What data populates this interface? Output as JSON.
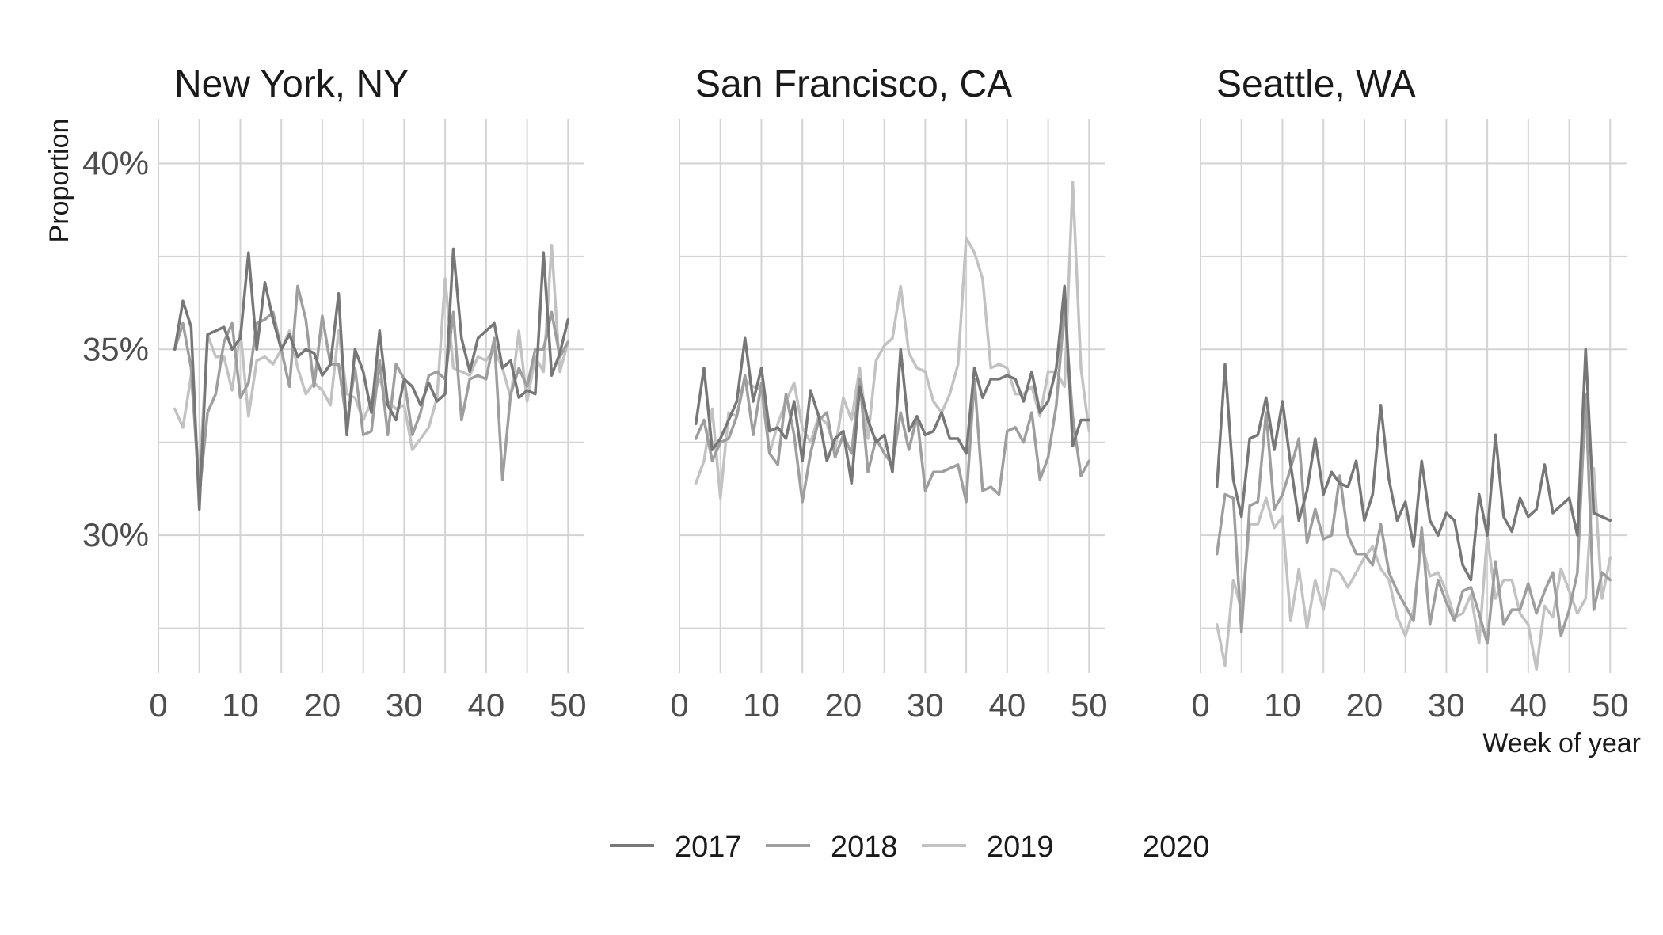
{
  "chart_data": {
    "type": "line",
    "layout": "facets",
    "x_axis_title": "Week of year",
    "y_axis_title": "Proportion",
    "x_ticks": [
      0,
      10,
      20,
      30,
      40,
      50
    ],
    "x_tick_labels": [
      "0",
      "10",
      "20",
      "30",
      "40",
      "50"
    ],
    "y_ticks": [
      0.3,
      0.35,
      0.4
    ],
    "y_tick_labels": [
      "30%",
      "35%",
      "40%"
    ],
    "xlim": [
      0,
      52
    ],
    "ylim": [
      0.263,
      0.412
    ],
    "grid": true,
    "legend_position": "bottom",
    "legend": [
      {
        "name": "2017",
        "color": "#777777"
      },
      {
        "name": "2018",
        "color": "#9e9e9e"
      },
      {
        "name": "2019",
        "color": "#c2c2c2"
      },
      {
        "name": "2020",
        "color": "#ffffff"
      }
    ],
    "panels": [
      {
        "title": "New York, NY",
        "series": [
          {
            "name": "2017",
            "x": [
              2,
              3,
              4,
              5,
              6,
              7,
              8,
              9,
              10,
              11,
              12,
              13,
              14,
              15,
              16,
              17,
              18,
              19,
              20,
              21,
              22,
              23,
              24,
              25,
              26,
              27,
              28,
              29,
              30,
              31,
              32,
              33,
              34,
              35,
              36,
              37,
              38,
              39,
              40,
              41,
              42,
              43,
              44,
              45,
              46,
              47,
              48,
              49,
              50
            ],
            "y": [
              0.35,
              0.363,
              0.356,
              0.307,
              0.354,
              0.355,
              0.356,
              0.35,
              0.353,
              0.376,
              0.35,
              0.368,
              0.358,
              0.35,
              0.354,
              0.348,
              0.35,
              0.349,
              0.343,
              0.346,
              0.365,
              0.327,
              0.35,
              0.344,
              0.333,
              0.355,
              0.335,
              0.331,
              0.342,
              0.34,
              0.335,
              0.341,
              0.336,
              0.338,
              0.377,
              0.353,
              0.344,
              0.353,
              0.355,
              0.357,
              0.345,
              0.347,
              0.337,
              0.339,
              0.338,
              0.376,
              0.343,
              0.349,
              0.358
            ]
          },
          {
            "name": "2018",
            "x": [
              2,
              3,
              4,
              5,
              6,
              7,
              8,
              9,
              10,
              11,
              12,
              13,
              14,
              15,
              16,
              17,
              18,
              19,
              20,
              21,
              22,
              23,
              24,
              25,
              26,
              27,
              28,
              29,
              30,
              31,
              32,
              33,
              34,
              35,
              36,
              37,
              38,
              39,
              40,
              41,
              42,
              43,
              44,
              45,
              46,
              47,
              48,
              49,
              50
            ],
            "y": [
              0.35,
              0.357,
              0.345,
              0.311,
              0.333,
              0.338,
              0.352,
              0.357,
              0.337,
              0.341,
              0.357,
              0.358,
              0.36,
              0.35,
              0.34,
              0.367,
              0.358,
              0.34,
              0.359,
              0.346,
              0.346,
              0.33,
              0.345,
              0.327,
              0.328,
              0.347,
              0.327,
              0.346,
              0.342,
              0.327,
              0.333,
              0.343,
              0.344,
              0.342,
              0.36,
              0.331,
              0.342,
              0.343,
              0.342,
              0.353,
              0.315,
              0.338,
              0.345,
              0.34,
              0.35,
              0.35,
              0.36,
              0.348,
              0.352
            ]
          },
          {
            "name": "2019",
            "x": [
              2,
              3,
              4,
              5,
              6,
              7,
              8,
              9,
              10,
              11,
              12,
              13,
              14,
              15,
              16,
              17,
              18,
              19,
              20,
              21,
              22,
              23,
              24,
              25,
              26,
              27,
              28,
              29,
              30,
              31,
              32,
              33,
              34,
              35,
              36,
              37,
              38,
              39,
              40,
              41,
              42,
              43,
              44,
              45,
              46,
              47,
              48,
              49,
              50
            ],
            "y": [
              0.334,
              0.329,
              0.343,
              0.315,
              0.354,
              0.348,
              0.348,
              0.339,
              0.355,
              0.332,
              0.347,
              0.348,
              0.346,
              0.35,
              0.355,
              0.345,
              0.338,
              0.341,
              0.339,
              0.335,
              0.355,
              0.338,
              0.337,
              0.331,
              0.336,
              0.342,
              0.336,
              0.334,
              0.335,
              0.323,
              0.326,
              0.329,
              0.337,
              0.369,
              0.345,
              0.344,
              0.343,
              0.348,
              0.347,
              0.35,
              0.345,
              0.337,
              0.355,
              0.336,
              0.348,
              0.344,
              0.378,
              0.344,
              0.352
            ]
          }
        ]
      },
      {
        "title": "San Francisco, CA",
        "series": [
          {
            "name": "2017",
            "x": [
              2,
              3,
              4,
              5,
              6,
              7,
              8,
              9,
              10,
              11,
              12,
              13,
              14,
              15,
              16,
              17,
              18,
              19,
              20,
              21,
              22,
              23,
              24,
              25,
              26,
              27,
              28,
              29,
              30,
              31,
              32,
              33,
              34,
              35,
              36,
              37,
              38,
              39,
              40,
              41,
              42,
              43,
              44,
              45,
              46,
              47,
              48,
              49,
              50
            ],
            "y": [
              0.33,
              0.345,
              0.323,
              0.326,
              0.331,
              0.336,
              0.353,
              0.336,
              0.345,
              0.328,
              0.329,
              0.326,
              0.336,
              0.32,
              0.339,
              0.332,
              0.32,
              0.326,
              0.328,
              0.314,
              0.34,
              0.331,
              0.325,
              0.327,
              0.317,
              0.35,
              0.328,
              0.332,
              0.327,
              0.328,
              0.333,
              0.326,
              0.326,
              0.322,
              0.345,
              0.337,
              0.342,
              0.342,
              0.343,
              0.342,
              0.336,
              0.344,
              0.333,
              0.336,
              0.345,
              0.367,
              0.324,
              0.331,
              0.331
            ]
          },
          {
            "name": "2018",
            "x": [
              2,
              3,
              4,
              5,
              6,
              7,
              8,
              9,
              10,
              11,
              12,
              13,
              14,
              15,
              16,
              17,
              18,
              19,
              20,
              21,
              22,
              23,
              24,
              25,
              26,
              27,
              28,
              29,
              30,
              31,
              32,
              33,
              34,
              35,
              36,
              37,
              38,
              39,
              40,
              41,
              42,
              43,
              44,
              45,
              46,
              47,
              48,
              49,
              50
            ],
            "y": [
              0.326,
              0.331,
              0.32,
              0.325,
              0.326,
              0.332,
              0.343,
              0.327,
              0.341,
              0.322,
              0.319,
              0.338,
              0.327,
              0.309,
              0.322,
              0.331,
              0.333,
              0.321,
              0.327,
              0.322,
              0.342,
              0.317,
              0.326,
              0.322,
              0.319,
              0.333,
              0.323,
              0.332,
              0.312,
              0.317,
              0.317,
              0.318,
              0.319,
              0.309,
              0.342,
              0.312,
              0.313,
              0.311,
              0.328,
              0.329,
              0.325,
              0.333,
              0.315,
              0.321,
              0.335,
              0.361,
              0.332,
              0.316,
              0.32
            ]
          },
          {
            "name": "2019",
            "x": [
              2,
              3,
              4,
              5,
              6,
              7,
              8,
              9,
              10,
              11,
              12,
              13,
              14,
              15,
              16,
              17,
              18,
              19,
              20,
              21,
              22,
              23,
              24,
              25,
              26,
              27,
              28,
              29,
              30,
              31,
              32,
              33,
              34,
              35,
              36,
              37,
              38,
              39,
              40,
              41,
              42,
              43,
              44,
              45,
              46,
              47,
              48,
              49,
              50
            ],
            "y": [
              0.314,
              0.32,
              0.334,
              0.31,
              0.333,
              0.332,
              0.342,
              0.34,
              0.339,
              0.322,
              0.33,
              0.336,
              0.341,
              0.329,
              0.325,
              0.332,
              0.33,
              0.323,
              0.337,
              0.331,
              0.345,
              0.326,
              0.347,
              0.351,
              0.353,
              0.367,
              0.349,
              0.345,
              0.344,
              0.336,
              0.333,
              0.338,
              0.346,
              0.38,
              0.376,
              0.369,
              0.345,
              0.346,
              0.345,
              0.338,
              0.338,
              0.34,
              0.332,
              0.344,
              0.344,
              0.34,
              0.395,
              0.345,
              0.328
            ]
          }
        ]
      },
      {
        "title": "Seattle, WA",
        "series": [
          {
            "name": "2017",
            "x": [
              2,
              3,
              4,
              5,
              6,
              7,
              8,
              9,
              10,
              11,
              12,
              13,
              14,
              15,
              16,
              17,
              18,
              19,
              20,
              21,
              22,
              23,
              24,
              25,
              26,
              27,
              28,
              29,
              30,
              31,
              32,
              33,
              34,
              35,
              36,
              37,
              38,
              39,
              40,
              41,
              42,
              43,
              44,
              45,
              46,
              47,
              48,
              49,
              50
            ],
            "y": [
              0.313,
              0.346,
              0.315,
              0.305,
              0.326,
              0.327,
              0.337,
              0.323,
              0.336,
              0.319,
              0.304,
              0.312,
              0.326,
              0.311,
              0.317,
              0.314,
              0.313,
              0.32,
              0.304,
              0.311,
              0.335,
              0.315,
              0.304,
              0.309,
              0.297,
              0.32,
              0.304,
              0.3,
              0.306,
              0.304,
              0.292,
              0.288,
              0.311,
              0.3,
              0.327,
              0.305,
              0.301,
              0.31,
              0.305,
              0.307,
              0.319,
              0.306,
              0.308,
              0.31,
              0.3,
              0.35,
              0.306,
              0.305,
              0.304
            ]
          },
          {
            "name": "2018",
            "x": [
              2,
              3,
              4,
              5,
              6,
              7,
              8,
              9,
              10,
              11,
              12,
              13,
              14,
              15,
              16,
              17,
              18,
              19,
              20,
              21,
              22,
              23,
              24,
              25,
              26,
              27,
              28,
              29,
              30,
              31,
              32,
              33,
              34,
              35,
              36,
              37,
              38,
              39,
              40,
              41,
              42,
              43,
              44,
              45,
              46,
              47,
              48,
              49,
              50
            ],
            "y": [
              0.295,
              0.311,
              0.31,
              0.274,
              0.308,
              0.309,
              0.333,
              0.307,
              0.311,
              0.318,
              0.326,
              0.298,
              0.307,
              0.299,
              0.3,
              0.316,
              0.3,
              0.295,
              0.295,
              0.292,
              0.303,
              0.29,
              0.285,
              0.281,
              0.277,
              0.302,
              0.276,
              0.288,
              0.282,
              0.277,
              0.285,
              0.286,
              0.279,
              0.271,
              0.293,
              0.276,
              0.28,
              0.28,
              0.287,
              0.279,
              0.285,
              0.29,
              0.273,
              0.28,
              0.29,
              0.338,
              0.28,
              0.29,
              0.288
            ]
          },
          {
            "name": "2019",
            "x": [
              2,
              3,
              4,
              5,
              6,
              7,
              8,
              9,
              10,
              11,
              12,
              13,
              14,
              15,
              16,
              17,
              18,
              19,
              20,
              21,
              22,
              23,
              24,
              25,
              26,
              27,
              28,
              29,
              30,
              31,
              32,
              33,
              34,
              35,
              36,
              37,
              38,
              39,
              40,
              41,
              42,
              43,
              44,
              45,
              46,
              47,
              48,
              49,
              50
            ],
            "y": [
              0.276,
              0.265,
              0.288,
              0.28,
              0.303,
              0.303,
              0.31,
              0.302,
              0.305,
              0.277,
              0.291,
              0.275,
              0.288,
              0.28,
              0.291,
              0.29,
              0.286,
              0.29,
              0.294,
              0.297,
              0.291,
              0.288,
              0.278,
              0.273,
              0.28,
              0.298,
              0.289,
              0.29,
              0.285,
              0.278,
              0.279,
              0.284,
              0.271,
              0.3,
              0.283,
              0.288,
              0.288,
              0.279,
              0.276,
              0.264,
              0.281,
              0.278,
              0.291,
              0.285,
              0.279,
              0.283,
              0.318,
              0.283,
              0.294
            ]
          }
        ]
      }
    ]
  }
}
